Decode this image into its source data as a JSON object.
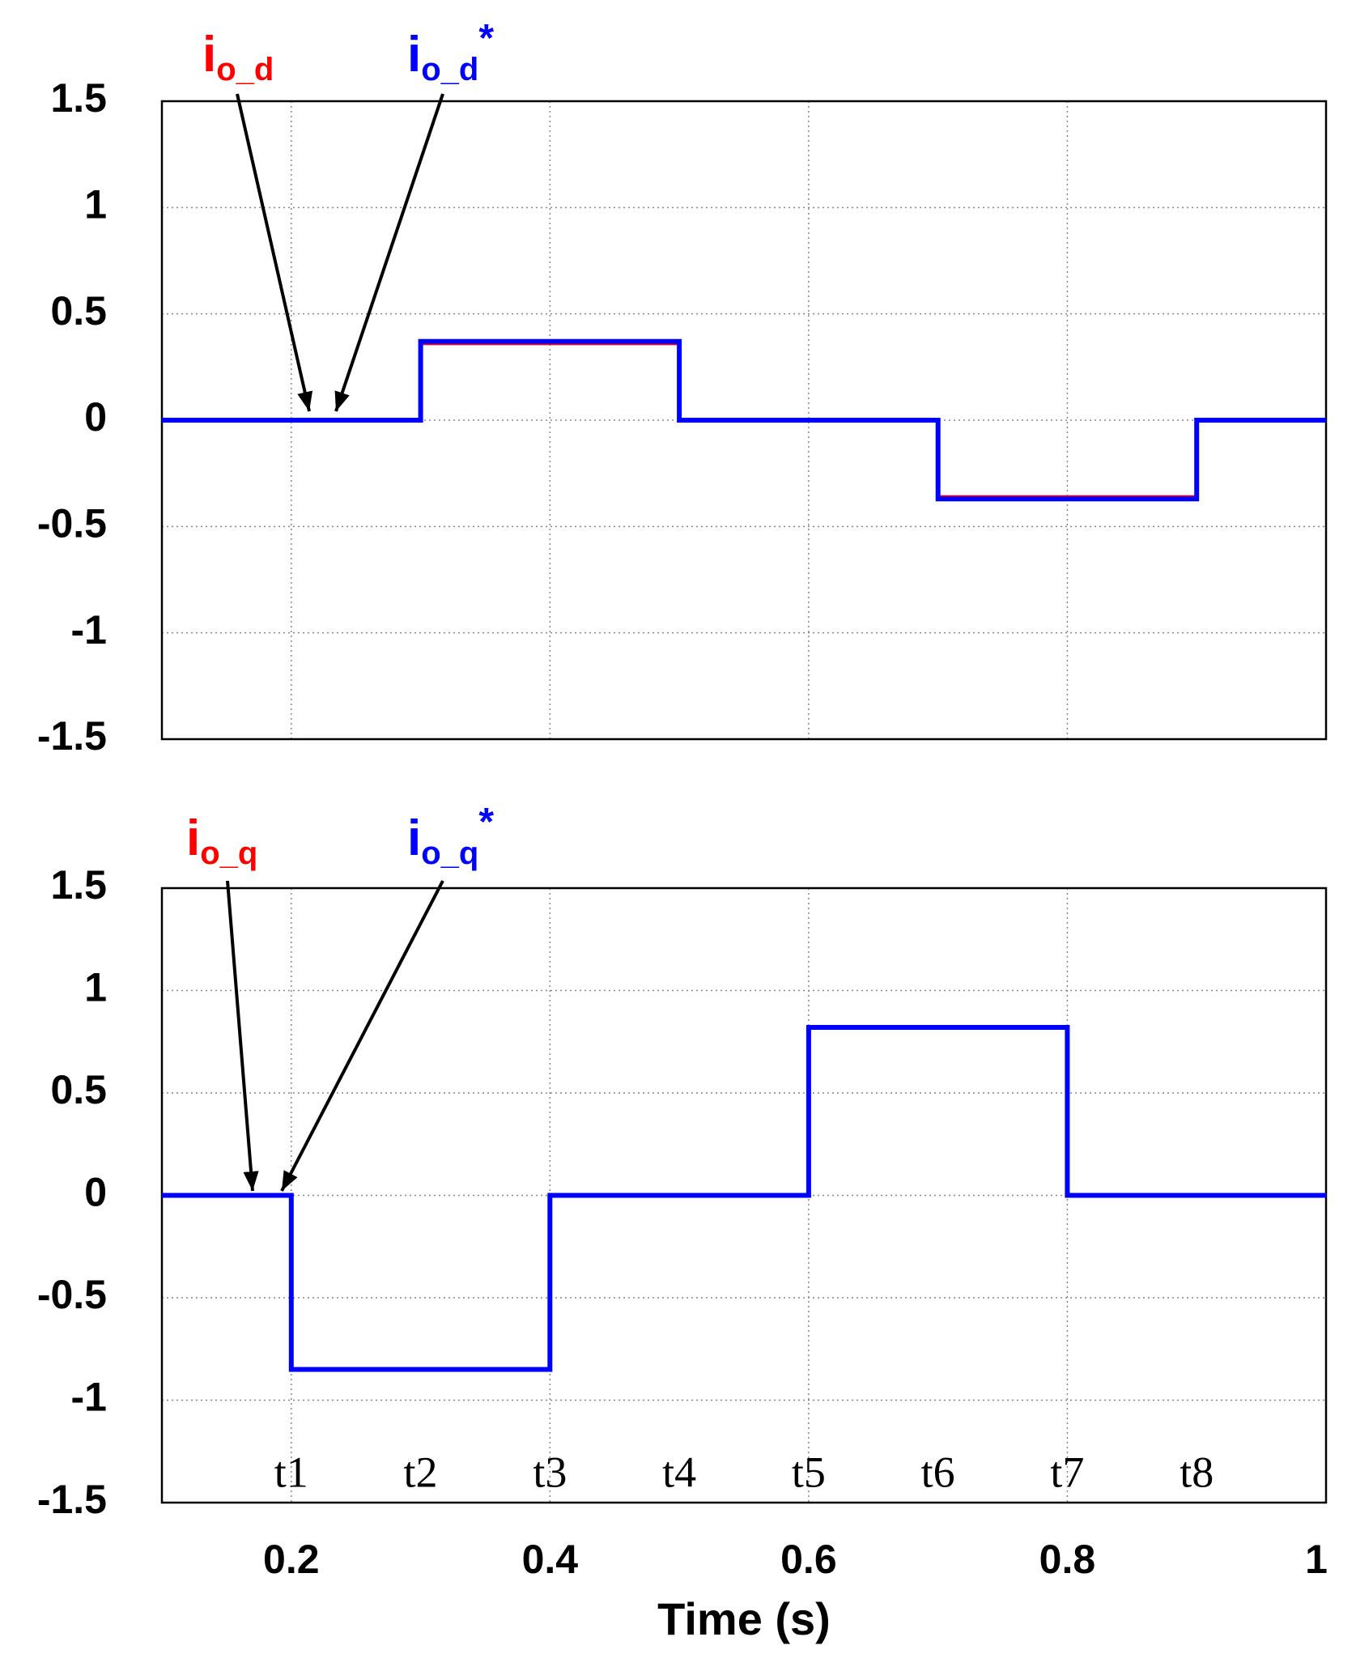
{
  "chart_data": [
    {
      "type": "line",
      "x": [
        0.1,
        0.3,
        0.3,
        0.5,
        0.5,
        0.7,
        0.7,
        0.9,
        0.9,
        1.0
      ],
      "series": [
        {
          "name": "io_d",
          "color": "#ff0000",
          "values": [
            0,
            0,
            0.36,
            0.36,
            0,
            0,
            -0.36,
            -0.36,
            0,
            0
          ]
        },
        {
          "name": "io_d*",
          "color": "#0000ff",
          "values": [
            0,
            0,
            0.37,
            0.37,
            0,
            0,
            -0.37,
            -0.37,
            0,
            0
          ]
        }
      ],
      "xlim": [
        0.1,
        1.0
      ],
      "xticks": [
        0.2,
        0.4,
        0.6,
        0.8,
        1
      ],
      "show_xtick_labels": false,
      "ylim": [
        -1.5,
        1.5
      ],
      "yticks": [
        1.5,
        1,
        0.5,
        0,
        -0.5,
        -1,
        -1.5
      ],
      "grid": true
    },
    {
      "type": "line",
      "x": [
        0.1,
        0.2,
        0.2,
        0.4,
        0.4,
        0.6,
        0.6,
        0.8,
        0.8,
        1.0
      ],
      "series": [
        {
          "name": "io_q",
          "color": "#ff0000",
          "values": [
            0,
            0,
            -0.85,
            -0.85,
            0,
            0,
            0.82,
            0.82,
            0,
            0
          ]
        },
        {
          "name": "io_q*",
          "color": "#0000ff",
          "values": [
            0,
            0,
            -0.85,
            -0.85,
            0,
            0,
            0.82,
            0.82,
            0,
            0
          ]
        }
      ],
      "xlim": [
        0.1,
        1.0
      ],
      "xticks": [
        0.2,
        0.4,
        0.6,
        0.8,
        1
      ],
      "show_xtick_labels": true,
      "xlabel": "Time (s)",
      "ylim": [
        -1.5,
        1.5
      ],
      "yticks": [
        1.5,
        1,
        0.5,
        0,
        -0.5,
        -1,
        -1.5
      ],
      "grid": true,
      "time_markers": [
        {
          "label": "t1",
          "x": 0.2
        },
        {
          "label": "t2",
          "x": 0.3
        },
        {
          "label": "t3",
          "x": 0.4
        },
        {
          "label": "t4",
          "x": 0.5
        },
        {
          "label": "t5",
          "x": 0.6
        },
        {
          "label": "t6",
          "x": 0.7
        },
        {
          "label": "t7",
          "x": 0.8
        },
        {
          "label": "t8",
          "x": 0.9
        }
      ]
    }
  ]
}
